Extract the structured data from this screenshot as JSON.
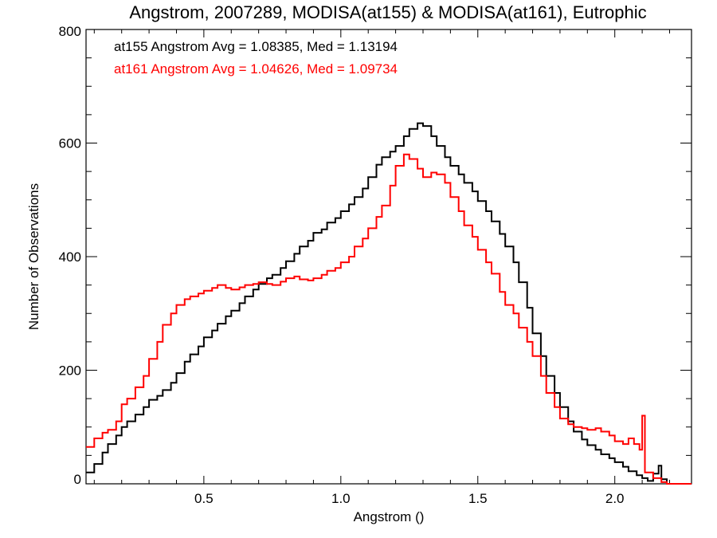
{
  "chart_data": {
    "type": "line",
    "title": "Angstrom, 2007289, MODISA(at155) & MODISA(at161), Eutrophic",
    "xlabel": "Angstrom ()",
    "ylabel": "Number of Observations",
    "xlim": [
      0.07,
      2.28
    ],
    "ylim": [
      0,
      800
    ],
    "xticks": [
      0.5,
      1.0,
      1.5,
      2.0
    ],
    "xtick_labels": [
      "0.5",
      "1.0",
      "1.5",
      "2.0"
    ],
    "yticks": [
      0,
      200,
      400,
      600,
      800
    ],
    "ytick_labels": [
      "0",
      "200",
      "400",
      "600",
      "800"
    ],
    "grid": false,
    "legend_placement": "top-left",
    "colors": {
      "at155": "#000000",
      "at161": "#ff0000"
    },
    "annotations": [
      {
        "text": "at155 Angstrom Avg = 1.08385, Med = 1.13194",
        "color": "#000000"
      },
      {
        "text": "at161 Angstrom Avg = 1.04626, Med = 1.09734",
        "color": "#ff0000"
      }
    ],
    "series": [
      {
        "key": "at155",
        "color": "#000000",
        "points": [
          [
            0.07,
            20
          ],
          [
            0.1,
            35
          ],
          [
            0.13,
            55
          ],
          [
            0.15,
            70
          ],
          [
            0.18,
            85
          ],
          [
            0.2,
            100
          ],
          [
            0.22,
            110
          ],
          [
            0.25,
            122
          ],
          [
            0.28,
            135
          ],
          [
            0.3,
            148
          ],
          [
            0.33,
            155
          ],
          [
            0.35,
            165
          ],
          [
            0.38,
            178
          ],
          [
            0.4,
            195
          ],
          [
            0.43,
            215
          ],
          [
            0.45,
            228
          ],
          [
            0.48,
            242
          ],
          [
            0.5,
            258
          ],
          [
            0.53,
            270
          ],
          [
            0.55,
            282
          ],
          [
            0.58,
            295
          ],
          [
            0.6,
            305
          ],
          [
            0.63,
            318
          ],
          [
            0.65,
            330
          ],
          [
            0.68,
            342
          ],
          [
            0.7,
            352
          ],
          [
            0.73,
            362
          ],
          [
            0.75,
            368
          ],
          [
            0.78,
            380
          ],
          [
            0.8,
            392
          ],
          [
            0.83,
            405
          ],
          [
            0.85,
            418
          ],
          [
            0.88,
            428
          ],
          [
            0.9,
            442
          ],
          [
            0.93,
            448
          ],
          [
            0.95,
            460
          ],
          [
            0.98,
            468
          ],
          [
            1.0,
            480
          ],
          [
            1.03,
            492
          ],
          [
            1.05,
            505
          ],
          [
            1.08,
            520
          ],
          [
            1.1,
            540
          ],
          [
            1.13,
            562
          ],
          [
            1.15,
            575
          ],
          [
            1.18,
            585
          ],
          [
            1.2,
            595
          ],
          [
            1.23,
            612
          ],
          [
            1.25,
            625
          ],
          [
            1.28,
            635
          ],
          [
            1.3,
            630
          ],
          [
            1.33,
            612
          ],
          [
            1.35,
            595
          ],
          [
            1.38,
            575
          ],
          [
            1.4,
            560
          ],
          [
            1.43,
            545
          ],
          [
            1.45,
            530
          ],
          [
            1.48,
            515
          ],
          [
            1.5,
            498
          ],
          [
            1.53,
            480
          ],
          [
            1.55,
            462
          ],
          [
            1.58,
            440
          ],
          [
            1.6,
            418
          ],
          [
            1.63,
            390
          ],
          [
            1.65,
            355
          ],
          [
            1.68,
            310
          ],
          [
            1.7,
            265
          ],
          [
            1.73,
            225
          ],
          [
            1.75,
            190
          ],
          [
            1.78,
            160
          ],
          [
            1.8,
            135
          ],
          [
            1.83,
            110
          ],
          [
            1.85,
            92
          ],
          [
            1.88,
            78
          ],
          [
            1.9,
            68
          ],
          [
            1.93,
            60
          ],
          [
            1.95,
            52
          ],
          [
            1.98,
            45
          ],
          [
            2.0,
            38
          ],
          [
            2.03,
            30
          ],
          [
            2.05,
            22
          ],
          [
            2.08,
            15
          ],
          [
            2.1,
            10
          ],
          [
            2.12,
            5
          ],
          [
            2.14,
            18
          ],
          [
            2.16,
            32
          ],
          [
            2.17,
            8
          ],
          [
            2.19,
            0
          ],
          [
            2.28,
            0
          ]
        ]
      },
      {
        "key": "at161",
        "color": "#ff0000",
        "points": [
          [
            0.07,
            65
          ],
          [
            0.1,
            80
          ],
          [
            0.13,
            90
          ],
          [
            0.15,
            95
          ],
          [
            0.18,
            110
          ],
          [
            0.2,
            140
          ],
          [
            0.22,
            150
          ],
          [
            0.25,
            170
          ],
          [
            0.28,
            190
          ],
          [
            0.3,
            220
          ],
          [
            0.33,
            250
          ],
          [
            0.35,
            280
          ],
          [
            0.38,
            300
          ],
          [
            0.4,
            315
          ],
          [
            0.43,
            325
          ],
          [
            0.45,
            330
          ],
          [
            0.48,
            335
          ],
          [
            0.5,
            340
          ],
          [
            0.53,
            345
          ],
          [
            0.55,
            350
          ],
          [
            0.58,
            345
          ],
          [
            0.6,
            342
          ],
          [
            0.63,
            346
          ],
          [
            0.65,
            350
          ],
          [
            0.68,
            352
          ],
          [
            0.7,
            355
          ],
          [
            0.73,
            352
          ],
          [
            0.75,
            350
          ],
          [
            0.78,
            356
          ],
          [
            0.8,
            362
          ],
          [
            0.83,
            365
          ],
          [
            0.85,
            360
          ],
          [
            0.88,
            358
          ],
          [
            0.9,
            362
          ],
          [
            0.93,
            368
          ],
          [
            0.95,
            375
          ],
          [
            0.98,
            380
          ],
          [
            1.0,
            390
          ],
          [
            1.03,
            400
          ],
          [
            1.05,
            418
          ],
          [
            1.08,
            432
          ],
          [
            1.1,
            450
          ],
          [
            1.13,
            470
          ],
          [
            1.15,
            490
          ],
          [
            1.18,
            525
          ],
          [
            1.2,
            560
          ],
          [
            1.23,
            580
          ],
          [
            1.25,
            572
          ],
          [
            1.28,
            555
          ],
          [
            1.3,
            540
          ],
          [
            1.33,
            548
          ],
          [
            1.35,
            545
          ],
          [
            1.38,
            530
          ],
          [
            1.4,
            505
          ],
          [
            1.43,
            480
          ],
          [
            1.45,
            455
          ],
          [
            1.48,
            435
          ],
          [
            1.5,
            412
          ],
          [
            1.53,
            390
          ],
          [
            1.55,
            370
          ],
          [
            1.58,
            338
          ],
          [
            1.6,
            315
          ],
          [
            1.63,
            300
          ],
          [
            1.65,
            275
          ],
          [
            1.68,
            250
          ],
          [
            1.7,
            225
          ],
          [
            1.73,
            190
          ],
          [
            1.75,
            160
          ],
          [
            1.78,
            135
          ],
          [
            1.8,
            115
          ],
          [
            1.83,
            105
          ],
          [
            1.85,
            100
          ],
          [
            1.88,
            98
          ],
          [
            1.9,
            95
          ],
          [
            1.93,
            98
          ],
          [
            1.95,
            92
          ],
          [
            1.98,
            85
          ],
          [
            2.0,
            75
          ],
          [
            2.03,
            70
          ],
          [
            2.05,
            80
          ],
          [
            2.07,
            70
          ],
          [
            2.09,
            60
          ],
          [
            2.1,
            120
          ],
          [
            2.11,
            20
          ],
          [
            2.14,
            10
          ],
          [
            2.17,
            3
          ],
          [
            2.19,
            0
          ],
          [
            2.28,
            0
          ]
        ]
      }
    ]
  }
}
